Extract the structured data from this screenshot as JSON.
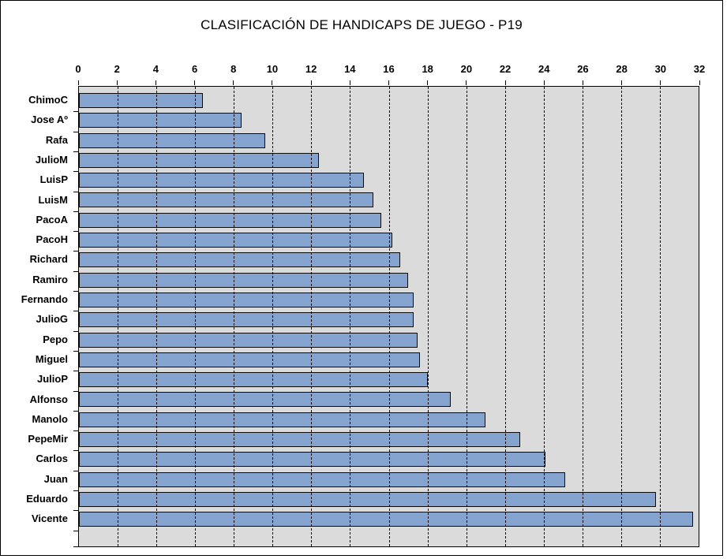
{
  "chart_data": {
    "type": "bar",
    "orientation": "horizontal",
    "title": "CLASIFICACIÓN DE HANDICAPS DE JUEGO - P19",
    "categories": [
      "ChimoC",
      "Jose Aº",
      "Rafa",
      "JulioM",
      "LuisP",
      "LuisM",
      "PacoA",
      "PacoH",
      "Richard",
      "Ramiro",
      "Fernando",
      "JulioG",
      "Pepo",
      "Miguel",
      "JulioP",
      "Alfonso",
      "Manolo",
      "PepeMir",
      "Carlos",
      "Juan",
      "Eduardo",
      "Vicente"
    ],
    "values": [
      6.4,
      8.4,
      9.6,
      12.4,
      14.7,
      15.2,
      15.6,
      16.2,
      16.6,
      17.0,
      17.3,
      17.3,
      17.5,
      17.6,
      18.0,
      19.2,
      21.0,
      22.8,
      24.1,
      25.1,
      29.8,
      31.7
    ],
    "xlabel": "",
    "ylabel": "",
    "xlim": [
      0,
      32
    ],
    "xticks": [
      0,
      2,
      4,
      6,
      8,
      10,
      12,
      14,
      16,
      18,
      20,
      22,
      24,
      26,
      28,
      30,
      32
    ],
    "grid": "vertical-dashed",
    "legend_position": "none",
    "colors": {
      "bar_fill": "#84A3CE",
      "bar_border": "#0A0A0A",
      "plot_background": "#DBDBDB",
      "gridline": "#000000",
      "frame_border": "#000000",
      "text": "#000000",
      "page_background": "#FFFFFF"
    }
  }
}
